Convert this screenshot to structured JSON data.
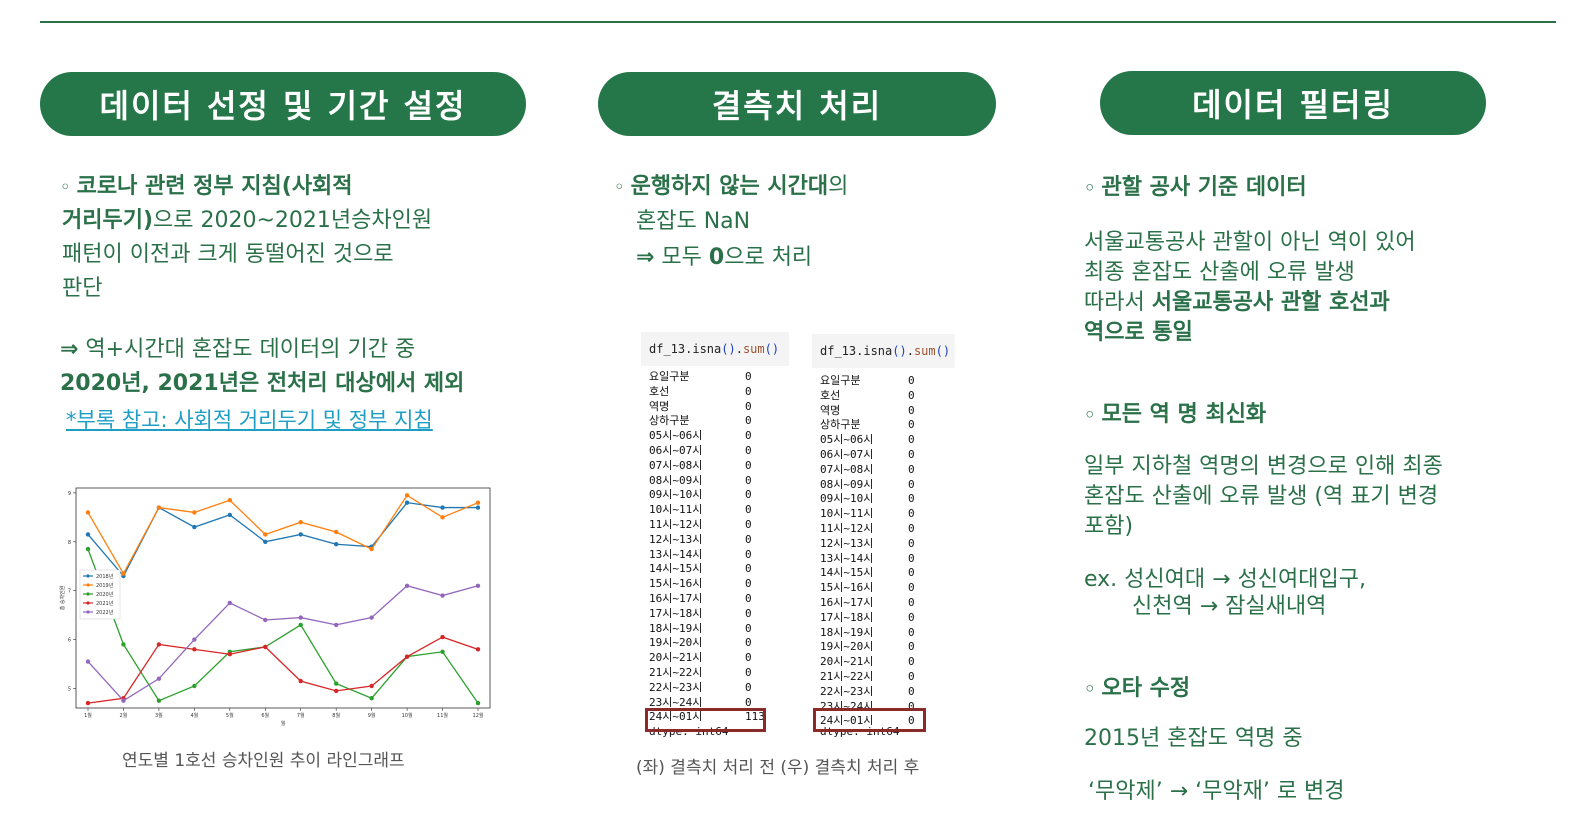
{
  "sections": {
    "selection": {
      "title": "데이터 선정 및 기간 설정",
      "bullet": "◦",
      "p1_bold1": "코로나 관련 정부 지침(사회적",
      "p1_bold2": "거리두기)",
      "p1_rest": "으로  2020~2021년승차인원",
      "p1_line3": "패턴이 이전과 크게 동떨어진 것으로",
      "p1_line4": "판단",
      "arrow": "⇒",
      "p2_line1": " 역+시간대 혼잡도 데이터의 기간 중",
      "p2_line2": "2020년, 2021년은 전처리 대상에서 제외",
      "ref": "*부록 참고: 사회적 거리두기 및 정부 지침",
      "chart_caption": "연도별 1호선 승차인원 추이 라인그래프"
    },
    "missing": {
      "title": "결측치 처리",
      "bullet": "◦",
      "line1_bold": "운행하지 않는 시간대",
      "line1_rest": "의",
      "line2": "혼잡도 NaN",
      "arrow": "⇒",
      "line3_pre": "  모두 ",
      "line3_bold": "0",
      "line3_post": "으로 처리",
      "caption": "(좌) 결측치 처리 전 (우) 결측치 처리 후",
      "code": {
        "var": "df_13",
        "method1": "isna",
        "method2": "sum",
        "dtype": "dtype: int64"
      }
    },
    "filtering": {
      "title": "데이터 필터링",
      "bullet": "◦",
      "h1": "관할 공사 기준 데이터",
      "h1_l1": "서울교통공사 관할이 아닌 역이 있어",
      "h1_l2": "최종 혼잡도 산출에 오류 발생",
      "h1_l3_pre": "따라서 ",
      "h1_l3_bold": "서울교통공사 관할 호선과",
      "h1_l4_bold": "역으로 통일",
      "h2": "모든 역 명 최신화",
      "h2_l1": "일부 지하철 역명의 변경으로 인해 최종",
      "h2_l2": "혼잡도 산출에 오류 발생 (역 표기 변경",
      "h2_l3": "포함)",
      "h2_ex1": "ex. 성신여대 → 성신여대입구,",
      "h2_ex2": "신천역 → 잠실새내역",
      "h3": "오타 수정",
      "h3_l1": "2015년 혼잡도 역명 중",
      "h3_l2": "‘무악제’ → ‘무악재’ 로 변경"
    }
  },
  "isna_before": [
    [
      "요일구분",
      "0"
    ],
    [
      "호선",
      "0"
    ],
    [
      "역명",
      "0"
    ],
    [
      "상하구분",
      "0"
    ],
    [
      "05시~06시",
      "0"
    ],
    [
      "06시~07시",
      "0"
    ],
    [
      "07시~08시",
      "0"
    ],
    [
      "08시~09시",
      "0"
    ],
    [
      "09시~10시",
      "0"
    ],
    [
      "10시~11시",
      "0"
    ],
    [
      "11시~12시",
      "0"
    ],
    [
      "12시~13시",
      "0"
    ],
    [
      "13시~14시",
      "0"
    ],
    [
      "14시~15시",
      "0"
    ],
    [
      "15시~16시",
      "0"
    ],
    [
      "16시~17시",
      "0"
    ],
    [
      "17시~18시",
      "0"
    ],
    [
      "18시~19시",
      "0"
    ],
    [
      "19시~20시",
      "0"
    ],
    [
      "20시~21시",
      "0"
    ],
    [
      "21시~22시",
      "0"
    ],
    [
      "22시~23시",
      "0"
    ],
    [
      "23시~24시",
      "0"
    ],
    [
      "24시~01시",
      "113"
    ]
  ],
  "isna_after": [
    [
      "요일구분",
      "0"
    ],
    [
      "호선",
      "0"
    ],
    [
      "역명",
      "0"
    ],
    [
      "상하구분",
      "0"
    ],
    [
      "05시~06시",
      "0"
    ],
    [
      "06시~07시",
      "0"
    ],
    [
      "07시~08시",
      "0"
    ],
    [
      "08시~09시",
      "0"
    ],
    [
      "09시~10시",
      "0"
    ],
    [
      "10시~11시",
      "0"
    ],
    [
      "11시~12시",
      "0"
    ],
    [
      "12시~13시",
      "0"
    ],
    [
      "13시~14시",
      "0"
    ],
    [
      "14시~15시",
      "0"
    ],
    [
      "15시~16시",
      "0"
    ],
    [
      "16시~17시",
      "0"
    ],
    [
      "17시~18시",
      "0"
    ],
    [
      "18시~19시",
      "0"
    ],
    [
      "19시~20시",
      "0"
    ],
    [
      "20시~21시",
      "0"
    ],
    [
      "21시~22시",
      "0"
    ],
    [
      "22시~23시",
      "0"
    ],
    [
      "23시~24시",
      "0"
    ],
    [
      "24시~01시",
      "0"
    ]
  ],
  "chart_data": {
    "type": "line",
    "categories": [
      "1월",
      "2월",
      "3월",
      "4월",
      "5월",
      "6월",
      "7월",
      "8월",
      "9월",
      "10월",
      "11월",
      "12월"
    ],
    "xlabel": "월",
    "ylabel": "총 승차인원",
    "ylim": [
      4.6,
      9.1
    ],
    "yticks": [
      "5",
      "6",
      "7",
      "8",
      "9"
    ],
    "legend_position": "left",
    "series": [
      {
        "name": "2018년",
        "color": "#1f77b4",
        "values": [
          8.15,
          7.3,
          8.7,
          8.3,
          8.55,
          8.0,
          8.15,
          7.95,
          7.9,
          8.8,
          8.7,
          8.7
        ]
      },
      {
        "name": "2019년",
        "color": "#ff7f0e",
        "values": [
          8.6,
          7.35,
          8.7,
          8.6,
          8.85,
          8.15,
          8.4,
          8.2,
          7.85,
          8.95,
          8.5,
          8.8
        ]
      },
      {
        "name": "2020년",
        "color": "#2ca02c",
        "values": [
          7.85,
          5.9,
          4.75,
          5.05,
          5.75,
          5.85,
          6.3,
          5.1,
          4.8,
          5.65,
          5.75,
          4.7
        ]
      },
      {
        "name": "2021년",
        "color": "#d62728",
        "values": [
          4.7,
          4.8,
          5.9,
          5.8,
          5.7,
          5.85,
          5.15,
          4.95,
          5.05,
          5.65,
          6.05,
          5.8
        ]
      },
      {
        "name": "2022년",
        "color": "#9467bd",
        "values": [
          5.55,
          4.75,
          5.2,
          6.0,
          6.75,
          6.4,
          6.45,
          6.3,
          6.45,
          7.1,
          6.9,
          7.1
        ]
      }
    ]
  }
}
